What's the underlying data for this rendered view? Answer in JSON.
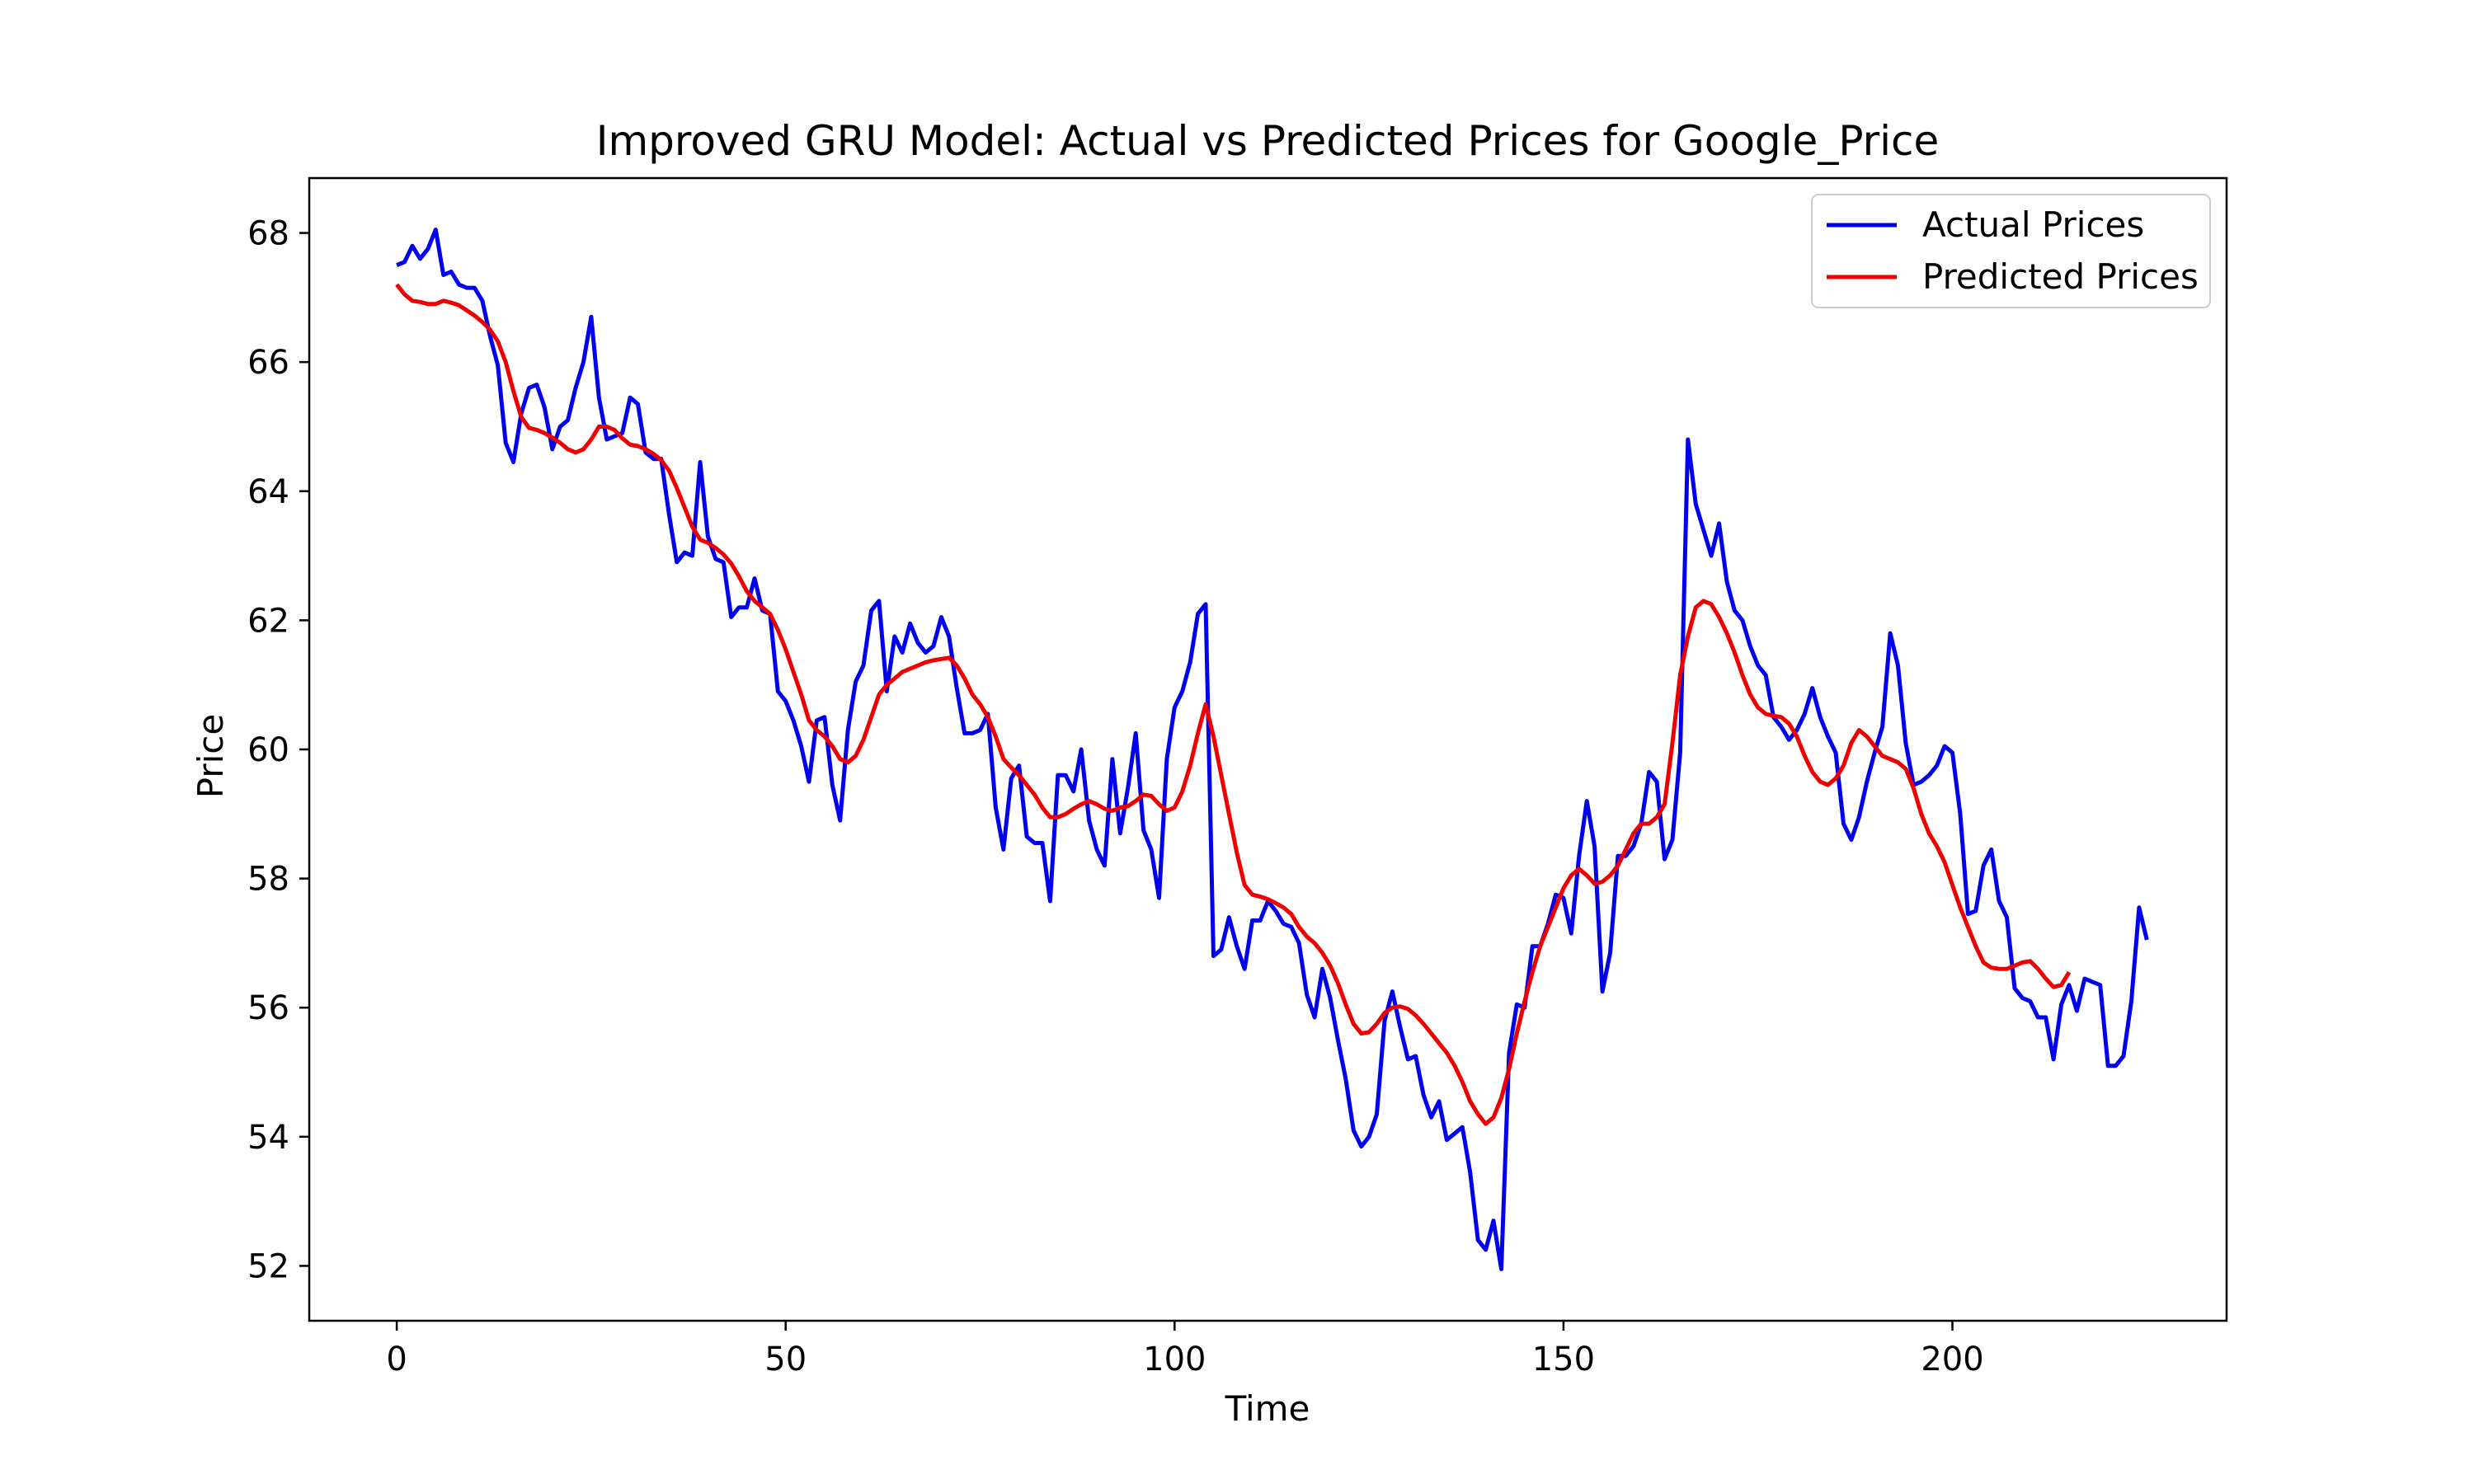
{
  "chart_data": {
    "type": "line",
    "title": "Improved GRU Model: Actual vs Predicted Prices for Google_Price",
    "xlabel": "Time",
    "ylabel": "Price",
    "xlim": [
      -11.25,
      235.25
    ],
    "ylim": [
      51.15,
      68.85
    ],
    "xticks": [
      0,
      50,
      100,
      150,
      200
    ],
    "yticks": [
      52,
      54,
      56,
      58,
      60,
      62,
      64,
      66,
      68
    ],
    "grid": false,
    "legend_position": "top-right",
    "series": [
      {
        "name": "Actual Prices",
        "color": "#0000ee",
        "values": [
          67.5,
          67.55,
          67.8,
          67.6,
          67.75,
          68.05,
          67.35,
          67.4,
          67.2,
          67.15,
          67.15,
          66.95,
          66.4,
          65.95,
          64.75,
          64.45,
          65.2,
          65.6,
          65.65,
          65.3,
          64.65,
          65.0,
          65.1,
          65.6,
          66.0,
          66.7,
          65.45,
          64.8,
          64.85,
          64.9,
          65.45,
          65.35,
          64.6,
          64.5,
          64.5,
          63.65,
          62.9,
          63.05,
          63.0,
          64.45,
          63.3,
          62.95,
          62.9,
          62.05,
          62.2,
          62.2,
          62.65,
          62.15,
          62.1,
          60.9,
          60.75,
          60.45,
          60.05,
          59.5,
          60.45,
          60.5,
          59.45,
          58.9,
          60.3,
          61.05,
          61.3,
          62.15,
          62.3,
          60.9,
          61.75,
          61.5,
          61.95,
          61.65,
          61.5,
          61.6,
          62.05,
          61.75,
          60.95,
          60.25,
          60.25,
          60.3,
          60.55,
          59.1,
          58.45,
          59.55,
          59.75,
          58.65,
          58.55,
          58.55,
          57.65,
          59.6,
          59.6,
          59.35,
          60.0,
          58.9,
          58.45,
          58.2,
          59.85,
          58.7,
          59.4,
          60.25,
          58.75,
          58.45,
          57.7,
          59.85,
          60.65,
          60.9,
          61.35,
          62.1,
          62.25,
          56.8,
          56.9,
          57.4,
          56.95,
          56.6,
          57.35,
          57.35,
          57.65,
          57.5,
          57.3,
          57.25,
          57.0,
          56.2,
          55.85,
          56.6,
          56.15,
          55.5,
          54.9,
          54.1,
          53.85,
          54.0,
          54.35,
          55.8,
          56.25,
          55.7,
          55.2,
          55.25,
          54.65,
          54.3,
          54.55,
          53.95,
          54.05,
          54.15,
          53.45,
          52.4,
          52.25,
          52.7,
          51.95,
          55.3,
          56.05,
          56.0,
          56.95,
          56.95,
          57.3,
          57.75,
          57.7,
          57.15,
          58.35,
          59.2,
          58.5,
          56.25,
          56.85,
          58.35,
          58.35,
          58.5,
          58.85,
          59.65,
          59.5,
          58.3,
          58.6,
          59.95,
          64.8,
          63.8,
          63.4,
          63.0,
          63.5,
          62.6,
          62.15,
          62.0,
          61.6,
          61.3,
          61.15,
          60.5,
          60.35,
          60.15,
          60.3,
          60.55,
          60.95,
          60.5,
          60.2,
          59.95,
          58.85,
          58.6,
          58.95,
          59.5,
          59.95,
          60.35,
          61.8,
          61.3,
          60.1,
          59.45,
          59.5,
          59.6,
          59.75,
          60.05,
          59.95,
          59.0,
          57.45,
          57.5,
          58.2,
          58.45,
          57.65,
          57.4,
          56.3,
          56.15,
          56.1,
          55.85,
          55.85,
          55.2,
          56.05,
          56.35,
          55.95,
          56.45,
          56.4,
          56.35,
          55.1,
          55.1,
          55.25,
          56.1,
          57.55,
          57.05
        ]
      },
      {
        "name": "Predicted Prices",
        "color": "#ee0000",
        "values": [
          67.2,
          67.05,
          66.95,
          66.93,
          66.9,
          66.9,
          66.95,
          66.92,
          66.88,
          66.8,
          66.72,
          66.62,
          66.5,
          66.32,
          66.0,
          65.55,
          65.15,
          64.98,
          64.95,
          64.9,
          64.83,
          64.75,
          64.65,
          64.6,
          64.65,
          64.8,
          65.0,
          65.0,
          64.95,
          64.82,
          64.72,
          64.7,
          64.65,
          64.58,
          64.48,
          64.32,
          64.05,
          63.75,
          63.45,
          63.25,
          63.2,
          63.12,
          63.02,
          62.88,
          62.68,
          62.45,
          62.3,
          62.2,
          62.1,
          61.85,
          61.55,
          61.2,
          60.85,
          60.45,
          60.3,
          60.2,
          60.05,
          59.85,
          59.8,
          59.9,
          60.15,
          60.5,
          60.85,
          61.0,
          61.1,
          61.2,
          61.25,
          61.3,
          61.35,
          61.38,
          61.4,
          61.42,
          61.3,
          61.1,
          60.85,
          60.7,
          60.5,
          60.2,
          59.85,
          59.72,
          59.6,
          59.45,
          59.3,
          59.1,
          58.95,
          58.95,
          59.0,
          59.08,
          59.15,
          59.2,
          59.15,
          59.08,
          59.05,
          59.1,
          59.12,
          59.2,
          59.3,
          59.28,
          59.15,
          59.05,
          59.1,
          59.35,
          59.75,
          60.25,
          60.7,
          60.2,
          59.6,
          59.0,
          58.4,
          57.9,
          57.75,
          57.72,
          57.68,
          57.62,
          57.55,
          57.45,
          57.25,
          57.1,
          57.0,
          56.85,
          56.65,
          56.38,
          56.05,
          55.75,
          55.6,
          55.62,
          55.75,
          55.92,
          56.0,
          56.02,
          55.98,
          55.88,
          55.75,
          55.6,
          55.45,
          55.3,
          55.1,
          54.85,
          54.55,
          54.35,
          54.2,
          54.3,
          54.6,
          55.05,
          55.6,
          56.1,
          56.55,
          56.95,
          57.25,
          57.55,
          57.85,
          58.05,
          58.15,
          58.05,
          57.92,
          57.95,
          58.05,
          58.2,
          58.45,
          58.7,
          58.85,
          58.85,
          58.95,
          59.15,
          60.1,
          61.15,
          61.75,
          62.2,
          62.3,
          62.25,
          62.05,
          61.8,
          61.5,
          61.15,
          60.85,
          60.65,
          60.55,
          60.52,
          60.5,
          60.4,
          60.2,
          59.9,
          59.65,
          59.5,
          59.45,
          59.55,
          59.75,
          60.1,
          60.3,
          60.2,
          60.05,
          59.9,
          59.85,
          59.8,
          59.7,
          59.4,
          59.0,
          58.7,
          58.5,
          58.25,
          57.9,
          57.55,
          57.25,
          56.95,
          56.7,
          56.62,
          56.6,
          56.6,
          56.65,
          56.7,
          56.72,
          56.6,
          56.45,
          56.32,
          56.35,
          56.55
        ]
      }
    ]
  }
}
